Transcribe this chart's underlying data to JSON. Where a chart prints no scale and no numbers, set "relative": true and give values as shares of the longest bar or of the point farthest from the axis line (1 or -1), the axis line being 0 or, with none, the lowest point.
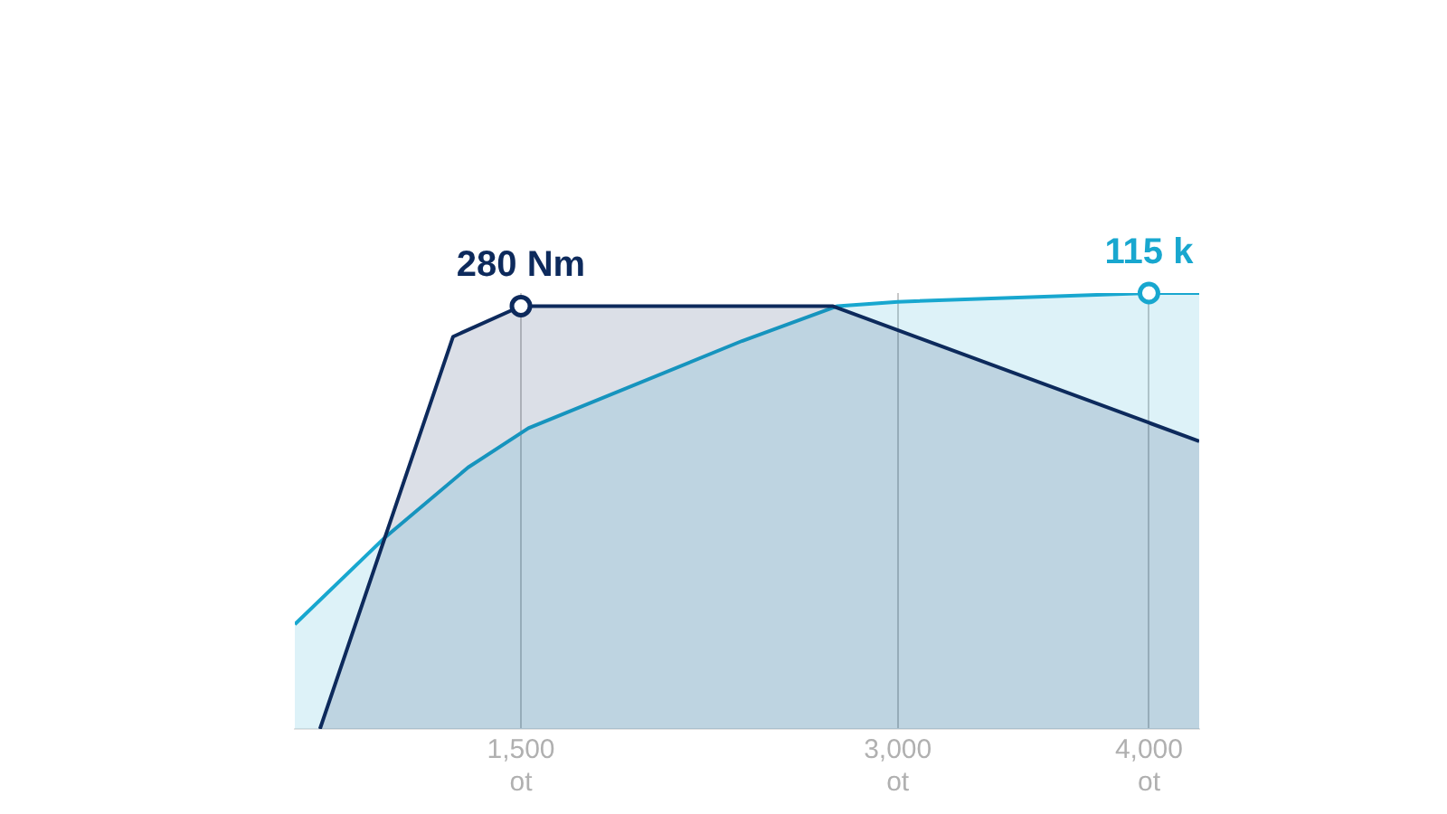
{
  "chart_data": {
    "type": "area",
    "relative": true,
    "xlim": [
      600,
      4200
    ],
    "xticks": [
      {
        "value": 1500,
        "label": "1,500\not"
      },
      {
        "value": 3000,
        "label": "3,000\not"
      },
      {
        "value": 4000,
        "label": "4,000\not"
      }
    ],
    "grid": "x",
    "legend": false,
    "series": [
      {
        "color": "#0d2a5c",
        "x": [
          700,
          1230,
          1500,
          2740,
          4200
        ],
        "values": [
          0,
          0.9,
          0.97,
          0.97,
          0.66
        ]
      },
      {
        "color": "#18a7cf",
        "x": [
          600,
          960,
          1290,
          1530,
          2380,
          2760,
          3000,
          4000,
          4200
        ],
        "values": [
          0.24,
          0.44,
          0.6,
          0.69,
          0.89,
          0.97,
          0.98,
          1,
          1
        ]
      }
    ],
    "annotations": [
      {
        "text": "280 Nm",
        "x": 1500,
        "y": 0.97
      },
      {
        "text": "115 k",
        "x": 4000,
        "y": 1
      }
    ]
  }
}
